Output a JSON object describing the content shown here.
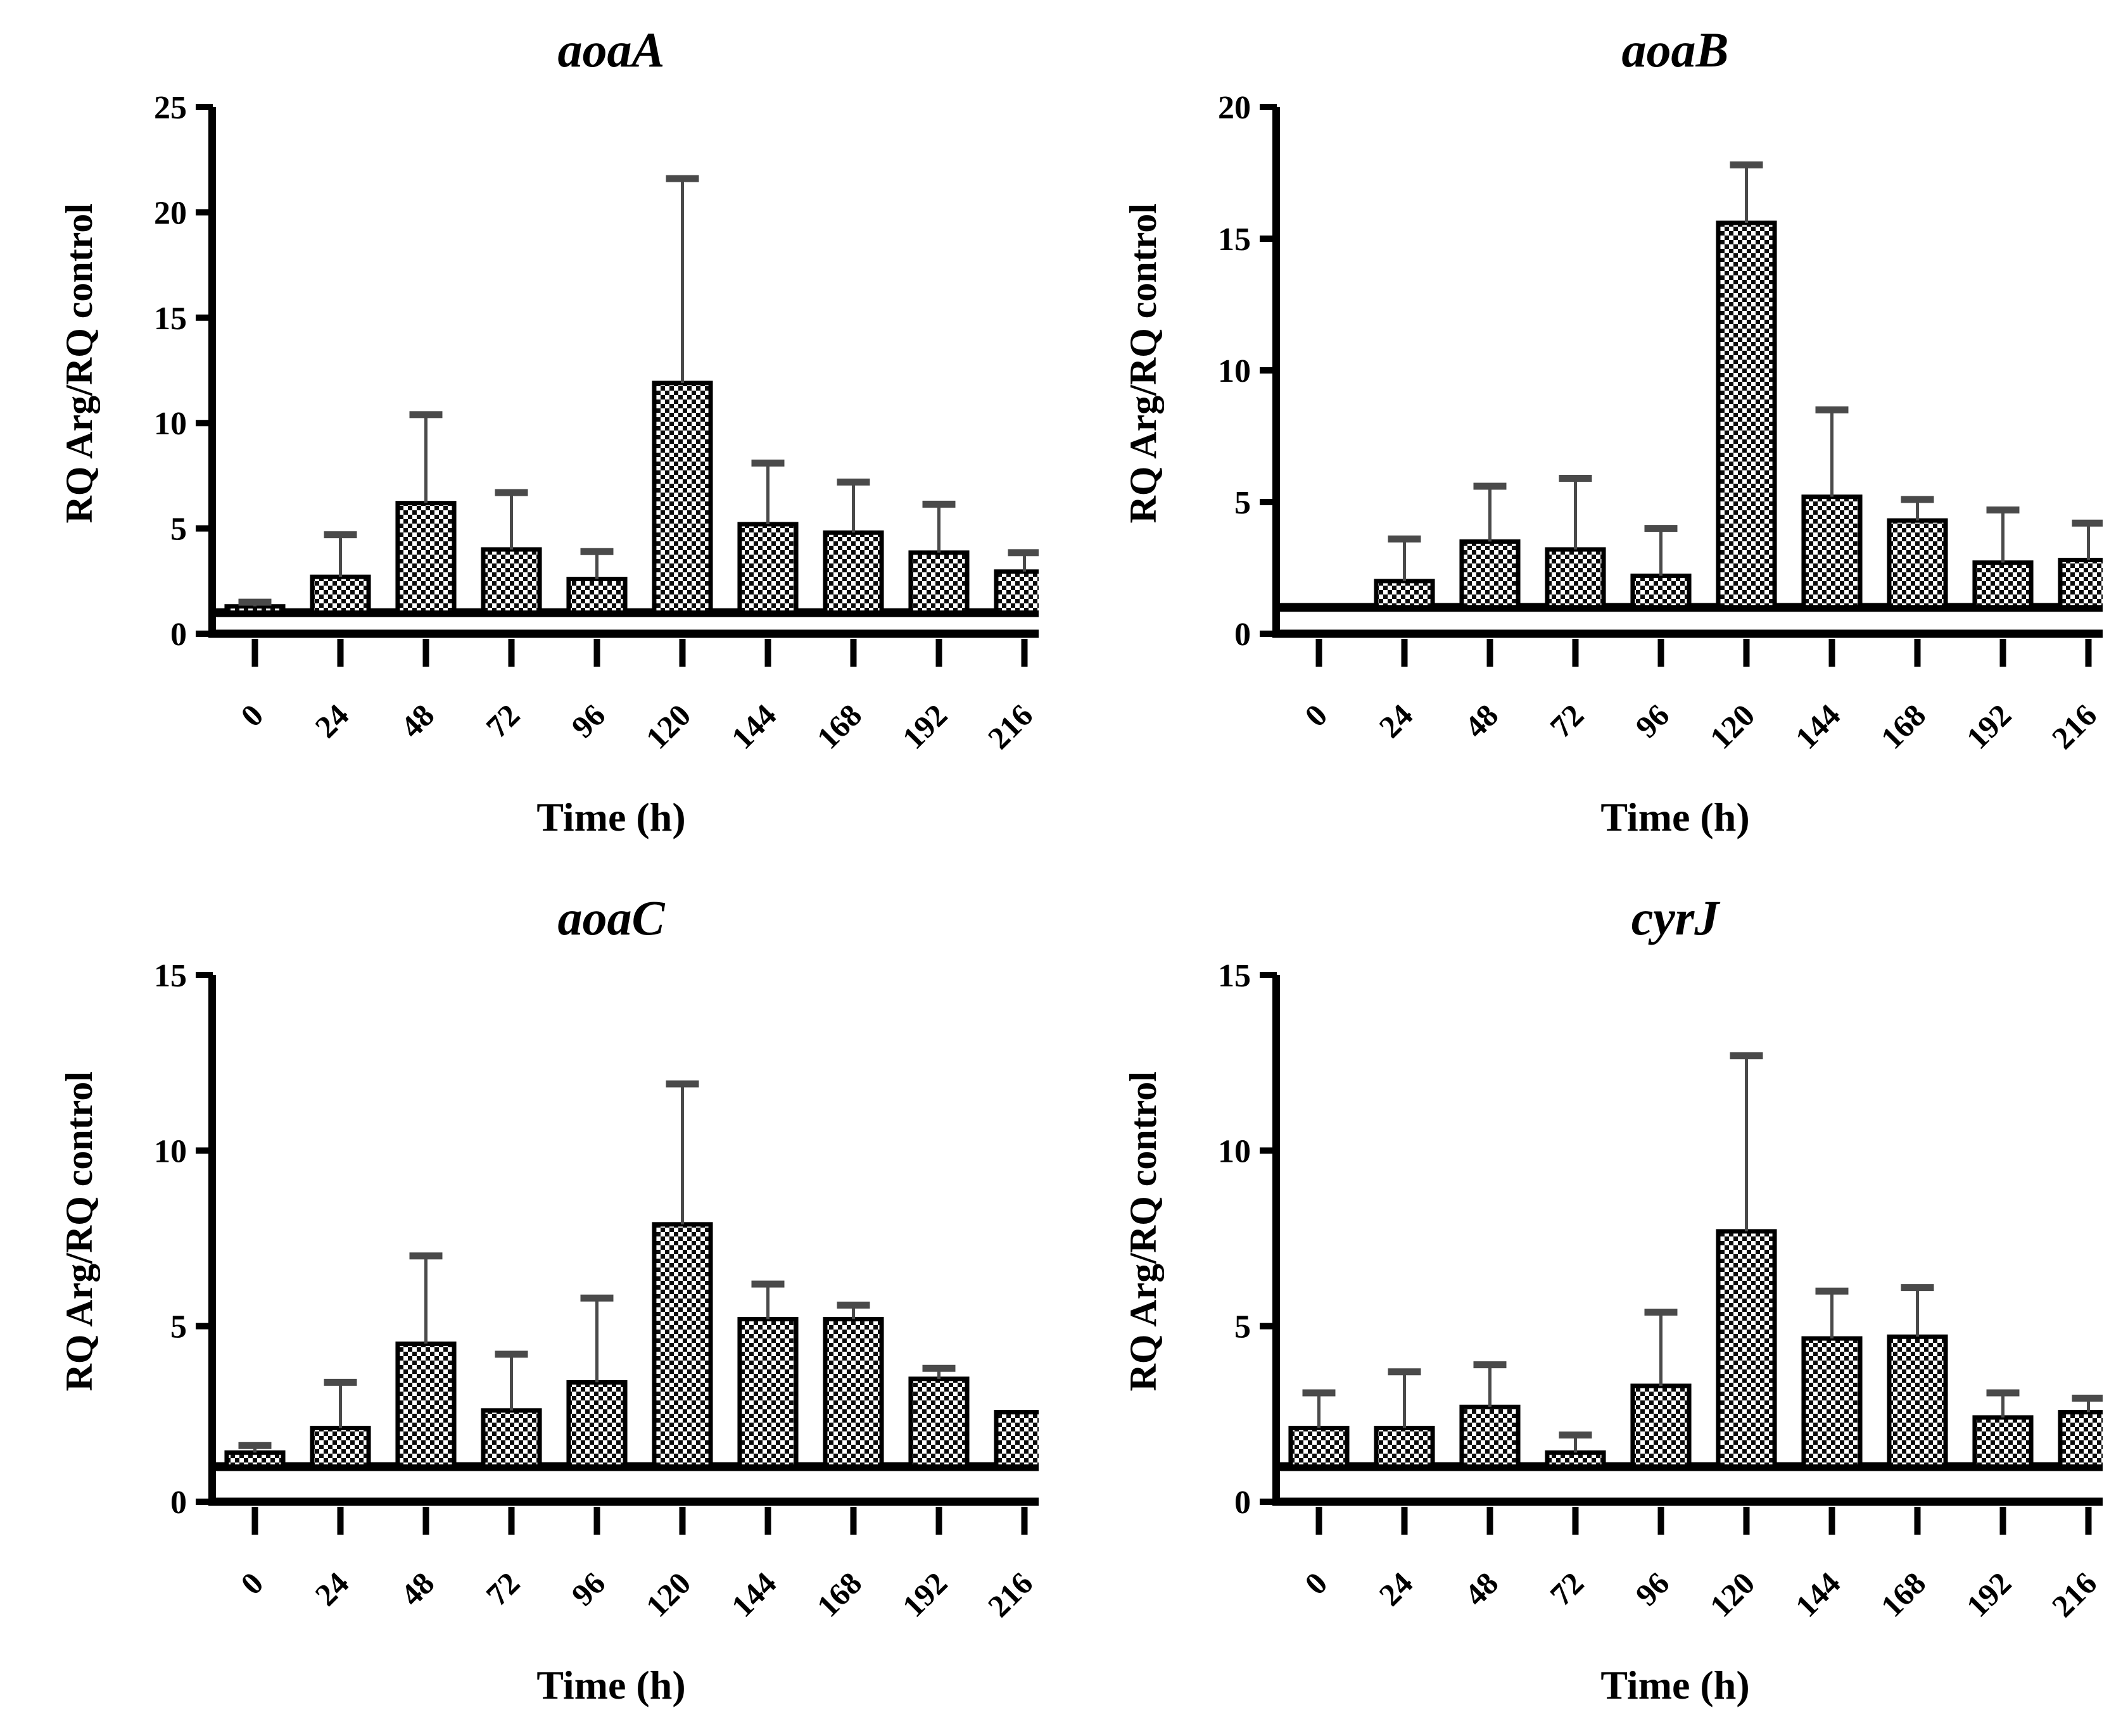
{
  "figure": {
    "background": "#ffffff",
    "axis_color": "#000000",
    "bar_pattern": "black-white-checkerboard",
    "bar_border_color": "#000000",
    "error_bar_color": "#4a4a4a",
    "error_caps": "upper-only"
  },
  "chart_data": [
    {
      "id": "aoaA",
      "type": "bar",
      "title": "aoaA",
      "xlabel": "Time (h)",
      "ylabel": "RQ Arg/RQ control",
      "categories": [
        "0",
        "24",
        "48",
        "72",
        "96",
        "120",
        "144",
        "168",
        "192",
        "216"
      ],
      "values": [
        1.3,
        2.7,
        6.2,
        4.0,
        2.6,
        11.9,
        5.2,
        4.8,
        3.85,
        2.95
      ],
      "errors_plus": [
        0.2,
        2.0,
        4.2,
        2.7,
        1.3,
        9.7,
        2.9,
        2.4,
        2.3,
        0.9
      ],
      "baseline": 1,
      "ylim": [
        0,
        25
      ],
      "yticks": [
        0,
        5,
        10,
        15,
        20,
        25
      ],
      "grid": "off",
      "legend": "none"
    },
    {
      "id": "aoaB",
      "type": "bar",
      "title": "aoaB",
      "xlabel": "Time (h)",
      "ylabel": "RQ Arg/RQ control",
      "categories": [
        "0",
        "24",
        "48",
        "72",
        "96",
        "120",
        "144",
        "168",
        "192",
        "216"
      ],
      "values": [
        1.0,
        2.0,
        3.5,
        3.2,
        2.2,
        15.6,
        5.2,
        4.3,
        2.7,
        2.8
      ],
      "errors_plus": [
        0,
        1.6,
        2.1,
        2.7,
        1.8,
        2.2,
        3.3,
        0.8,
        2.0,
        1.4
      ],
      "baseline": 1,
      "ylim": [
        0,
        20
      ],
      "yticks": [
        0,
        5,
        10,
        15,
        20
      ],
      "grid": "off",
      "legend": "none"
    },
    {
      "id": "aoaC",
      "type": "bar",
      "title": "aoaC",
      "xlabel": "Time (h)",
      "ylabel": "RQ Arg/RQ control",
      "categories": [
        "0",
        "24",
        "48",
        "72",
        "96",
        "120",
        "144",
        "168",
        "192",
        "216"
      ],
      "values": [
        1.4,
        2.1,
        4.5,
        2.6,
        3.4,
        7.9,
        5.2,
        5.2,
        3.5,
        2.55
      ],
      "errors_plus": [
        0.2,
        1.3,
        2.5,
        1.6,
        2.4,
        4.0,
        1.0,
        0.4,
        0.3,
        0
      ],
      "baseline": 1,
      "ylim": [
        0,
        15
      ],
      "yticks": [
        0,
        5,
        10,
        15
      ],
      "grid": "off",
      "legend": "none"
    },
    {
      "id": "cyrJ",
      "type": "bar",
      "title": "cyrJ",
      "xlabel": "Time (h)",
      "ylabel": "RQ Arg/RQ control",
      "categories": [
        "0",
        "24",
        "48",
        "72",
        "96",
        "120",
        "144",
        "168",
        "192",
        "216"
      ],
      "values": [
        2.1,
        2.1,
        2.7,
        1.4,
        3.3,
        7.7,
        4.65,
        4.7,
        2.4,
        2.55
      ],
      "errors_plus": [
        1.0,
        1.6,
        1.2,
        0.5,
        2.1,
        5.0,
        1.35,
        1.4,
        0.7,
        0.4
      ],
      "baseline": 1,
      "ylim": [
        0,
        15
      ],
      "yticks": [
        0,
        5,
        10,
        15
      ],
      "grid": "off",
      "legend": "none"
    }
  ]
}
